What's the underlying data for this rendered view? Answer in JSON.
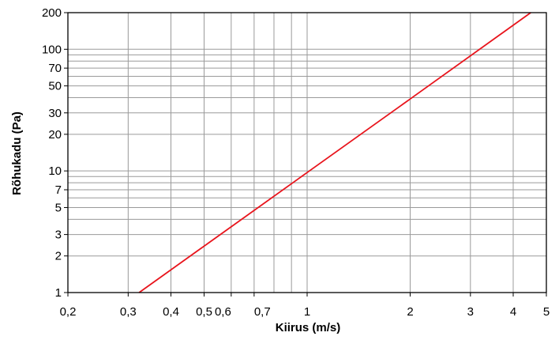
{
  "chart_data": {
    "type": "line",
    "xlabel": "Kiirus (m/s)",
    "ylabel": "Rõhukadu (Pa)",
    "x_scale": "log",
    "y_scale": "log",
    "xlim": [
      0.2,
      5
    ],
    "ylim": [
      1,
      200
    ],
    "grid": true,
    "x_gridlines": [
      0.3,
      0.4,
      0.5,
      0.6,
      0.7,
      0.8,
      0.9,
      1,
      2,
      3,
      4
    ],
    "y_gridlines": [
      2,
      3,
      4,
      5,
      6,
      7,
      8,
      9,
      10,
      20,
      30,
      40,
      50,
      60,
      70,
      80,
      90,
      100
    ],
    "x_ticks": [
      {
        "value": 0.2,
        "label": "0,2"
      },
      {
        "value": 0.3,
        "label": "0,3"
      },
      {
        "value": 0.4,
        "label": "0,4"
      },
      {
        "value": 0.5,
        "label": "0,5"
      },
      {
        "value": 0.6,
        "label": "0,6"
      },
      {
        "value": 0.7,
        "label": "0,7"
      },
      {
        "value": 1,
        "label": "1"
      },
      {
        "value": 2,
        "label": "2"
      },
      {
        "value": 3,
        "label": "3"
      },
      {
        "value": 4,
        "label": "4"
      },
      {
        "value": 5,
        "label": "5"
      }
    ],
    "y_ticks": [
      {
        "value": 1,
        "label": "1"
      },
      {
        "value": 2,
        "label": "2"
      },
      {
        "value": 3,
        "label": "3"
      },
      {
        "value": 5,
        "label": "5"
      },
      {
        "value": 7,
        "label": "7"
      },
      {
        "value": 10,
        "label": "10"
      },
      {
        "value": 20,
        "label": "20"
      },
      {
        "value": 30,
        "label": "30"
      },
      {
        "value": 50,
        "label": "50"
      },
      {
        "value": 70,
        "label": "70"
      },
      {
        "value": 100,
        "label": "100"
      },
      {
        "value": 200,
        "label": "200"
      }
    ],
    "series": [
      {
        "color": "#e8141c",
        "points": [
          {
            "x": 0.323,
            "y": 1
          },
          {
            "x": 1.0,
            "y": 9.7
          },
          {
            "x": 2.0,
            "y": 39
          },
          {
            "x": 4.5,
            "y": 200
          }
        ]
      }
    ]
  }
}
